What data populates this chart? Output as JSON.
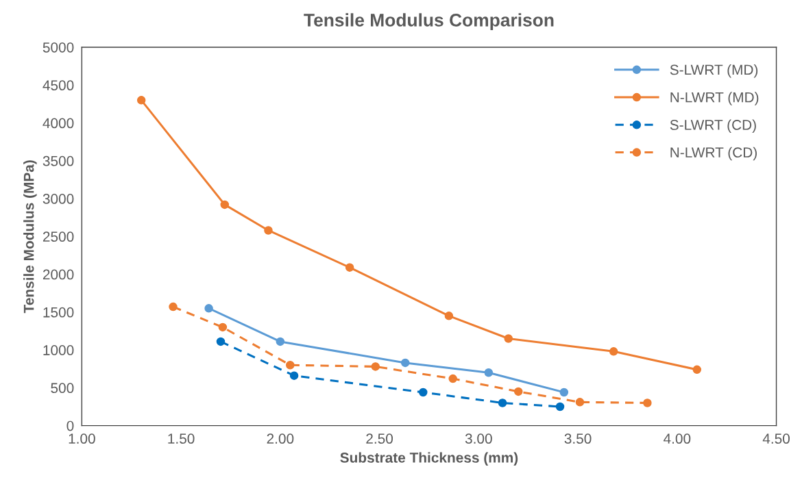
{
  "chart_data": {
    "type": "line",
    "title": "Tensile Modulus Comparison",
    "xlabel": "Substrate Thickness (mm)",
    "ylabel": "Tensile Modulus (MPa)",
    "xlim": [
      1.0,
      4.5
    ],
    "xticks": [
      {
        "value": 1.0,
        "label": "1.00"
      },
      {
        "value": 1.5,
        "label": "1.50"
      },
      {
        "value": 2.0,
        "label": "2.00"
      },
      {
        "value": 2.5,
        "label": "2.50"
      },
      {
        "value": 3.0,
        "label": "3.00"
      },
      {
        "value": 3.5,
        "label": "3.50"
      },
      {
        "value": 4.0,
        "label": "4.00"
      },
      {
        "value": 4.5,
        "label": "4.50"
      }
    ],
    "ylim": [
      0,
      5000
    ],
    "yticks": [
      0,
      500,
      1000,
      1500,
      2000,
      2500,
      3000,
      3500,
      4000,
      4500,
      5000
    ],
    "grid": false,
    "legend": "top right",
    "marker": "circle",
    "series": [
      {
        "name": "S-LWRT (MD)",
        "color": "#5b9bd5",
        "line_style": "solid",
        "x": [
          1.64,
          2.0,
          2.63,
          3.05,
          3.43
        ],
        "values": [
          1550,
          1110,
          830,
          700,
          440
        ]
      },
      {
        "name": "N-LWRT (MD)",
        "color": "#ed7d31",
        "line_style": "solid",
        "x": [
          1.3,
          1.72,
          1.94,
          2.35,
          2.85,
          3.15,
          3.68,
          4.1
        ],
        "values": [
          4300,
          2920,
          2580,
          2090,
          1450,
          1150,
          980,
          740
        ]
      },
      {
        "name": "S-LWRT (CD)",
        "color": "#0070c0",
        "line_style": "dashed",
        "x": [
          1.7,
          2.07,
          2.72,
          3.12,
          3.41
        ],
        "values": [
          1110,
          660,
          440,
          300,
          250
        ]
      },
      {
        "name": "N-LWRT (CD)",
        "color": "#ed7d31",
        "line_style": "dashed",
        "x": [
          1.46,
          1.71,
          2.05,
          2.48,
          2.87,
          3.2,
          3.51,
          3.85
        ],
        "values": [
          1570,
          1300,
          800,
          780,
          620,
          450,
          310,
          300
        ]
      }
    ]
  }
}
